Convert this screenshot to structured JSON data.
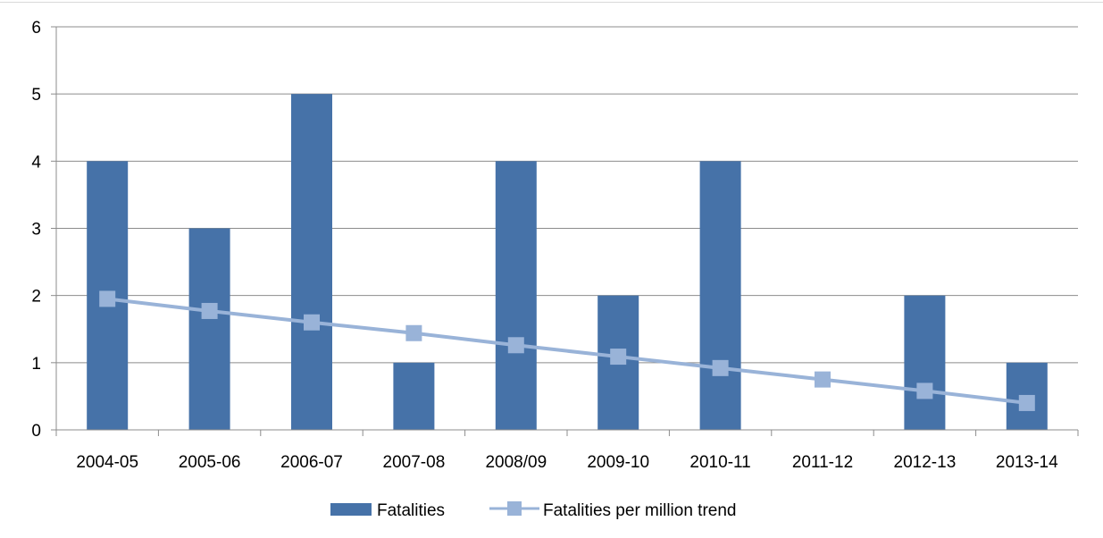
{
  "chart_data": {
    "type": "bar",
    "categories": [
      "2004-05",
      "2005-06",
      "2006-07",
      "2007-08",
      "2008/09",
      "2009-10",
      "2010-11",
      "2011-12",
      "2012-13",
      "2013-14"
    ],
    "series": [
      {
        "name": "Fatalities",
        "type": "bar",
        "color": "#4672a8",
        "values": [
          4,
          3,
          5,
          1,
          4,
          2,
          4,
          0,
          2,
          1
        ]
      },
      {
        "name": "Fatalities per million trend",
        "type": "line",
        "marker": "square",
        "color": "#99b3d8",
        "values": [
          1.95,
          1.77,
          1.6,
          1.44,
          1.26,
          1.09,
          0.92,
          0.75,
          0.58,
          0.4
        ]
      }
    ],
    "y_ticks": [
      "0",
      "1",
      "2",
      "3",
      "4",
      "5",
      "6"
    ],
    "ylim": [
      0,
      6
    ],
    "grid": true,
    "legend_position": "bottom"
  }
}
